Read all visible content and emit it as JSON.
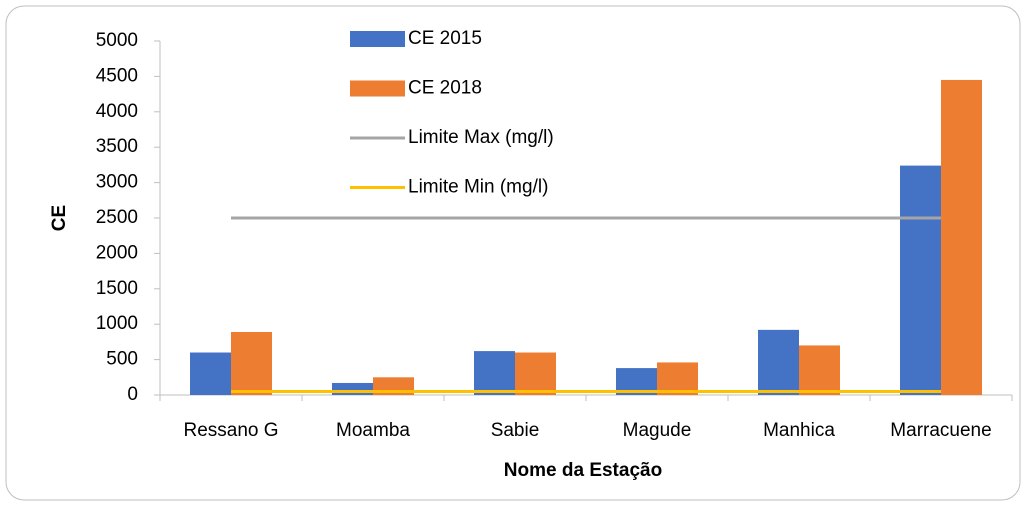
{
  "chart_data": {
    "type": "bar",
    "x_label": "Nome da Estação",
    "y_label": "CE",
    "categories": [
      "Ressano G",
      "Moamba",
      "Sabie",
      "Magude",
      "Manhica",
      "Marracuene"
    ],
    "series": [
      {
        "name": "CE 2015",
        "type": "bar",
        "color": "#4472c4",
        "values": [
          600,
          170,
          620,
          380,
          920,
          3240
        ]
      },
      {
        "name": "CE 2018",
        "type": "bar",
        "color": "#ed7d31",
        "values": [
          890,
          250,
          600,
          460,
          700,
          4450
        ]
      },
      {
        "name": "Limite Max (mg/l)",
        "type": "line",
        "color": "#a5a5a5",
        "values": [
          2500,
          2500,
          2500,
          2500,
          2500,
          2500
        ]
      },
      {
        "name": "Limite Min (mg/l)",
        "type": "line",
        "color": "#ffc000",
        "values": [
          50,
          50,
          50,
          50,
          50,
          50
        ]
      }
    ],
    "ylim": [
      0,
      5000
    ],
    "yticks": [
      0,
      500,
      1000,
      1500,
      2000,
      2500,
      3000,
      3500,
      4000,
      4500,
      5000
    ],
    "grid": false
  }
}
